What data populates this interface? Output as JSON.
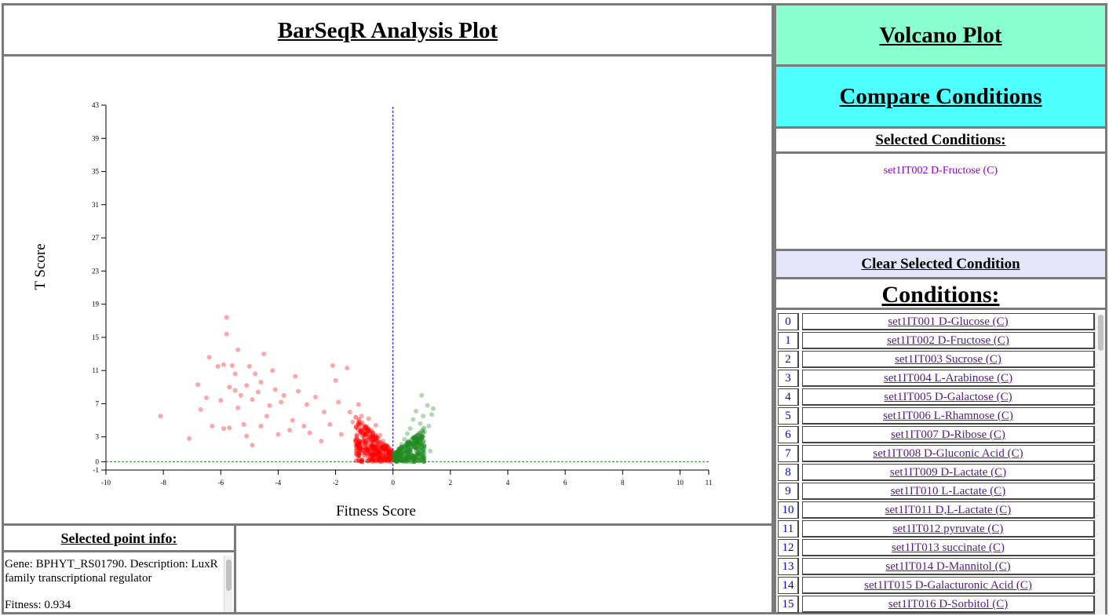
{
  "title": "BarSeqR Analysis Plot",
  "info": {
    "title": "Selected point info:",
    "gene_line": "Gene: BPHYT_RS01790. Description: LuxR family transcriptional regulator",
    "fitness_line": "Fitness: 0.934"
  },
  "nav": {
    "volcano": "Volcano Plot",
    "compare": "Compare Conditions"
  },
  "selected": {
    "title": "Selected Conditions:",
    "items": [
      "set1IT002 D-Fructose (C)"
    ],
    "clear": "Clear Selected Condition"
  },
  "conditions": {
    "title": "Conditions:",
    "items": [
      {
        "idx": "0",
        "name": "set1IT001 D-Glucose (C)"
      },
      {
        "idx": "1",
        "name": "set1IT002 D-Fructose (C)"
      },
      {
        "idx": "2",
        "name": "set1IT003 Sucrose (C)"
      },
      {
        "idx": "3",
        "name": "set1IT004 L-Arabinose (C)"
      },
      {
        "idx": "4",
        "name": "set1IT005 D-Galactose (C)"
      },
      {
        "idx": "5",
        "name": "set1IT006 L-Rhamnose (C)"
      },
      {
        "idx": "6",
        "name": "set1IT007 D-Ribose (C)"
      },
      {
        "idx": "7",
        "name": "set1IT008 D-Gluconic Acid (C)"
      },
      {
        "idx": "8",
        "name": "set1IT009 D-Lactate (C)"
      },
      {
        "idx": "9",
        "name": "set1IT010 L-Lactate (C)"
      },
      {
        "idx": "10",
        "name": "set1IT011 D,L-Lactate (C)"
      },
      {
        "idx": "11",
        "name": "set1IT012 pyruvate (C)"
      },
      {
        "idx": "12",
        "name": "set1IT013 succinate (C)"
      },
      {
        "idx": "13",
        "name": "set1IT014 D-Mannitol (C)"
      },
      {
        "idx": "14",
        "name": "set1IT015 D-Galacturonic Acid (C)"
      },
      {
        "idx": "15",
        "name": "set1IT016 D-Sorbitol (C)"
      }
    ]
  },
  "chart_data": {
    "type": "scatter",
    "xlabel": "Fitness Score",
    "ylabel": "T Score",
    "xlim": [
      -10,
      11
    ],
    "ylim": [
      -1,
      43
    ],
    "x_ticks": [
      -10,
      -8,
      -6,
      -4,
      -2,
      0,
      2,
      4,
      6,
      8,
      10,
      11
    ],
    "y_ticks": [
      -1,
      0,
      3,
      7,
      11,
      15,
      19,
      23,
      27,
      31,
      35,
      39,
      43
    ],
    "reference_lines": {
      "vertical_x": 0,
      "horizontal_y": 0
    },
    "colors": {
      "negative": "#ff0000",
      "positive": "#228b22",
      "vline": "#0000cc",
      "hline": "#228b22"
    },
    "series": [
      {
        "color": "#ff0000",
        "points": [
          [
            -8.1,
            5.5
          ],
          [
            -7.1,
            2.8
          ],
          [
            -6.8,
            9.3
          ],
          [
            -6.7,
            6.3
          ],
          [
            -6.5,
            7.7
          ],
          [
            -6.4,
            12.6
          ],
          [
            -6.3,
            4.3
          ],
          [
            -6.1,
            11.5
          ],
          [
            -6.0,
            7.4
          ],
          [
            -5.9,
            4.0
          ],
          [
            -5.9,
            11.7
          ],
          [
            -5.8,
            15.4
          ],
          [
            -5.8,
            17.4
          ],
          [
            -5.7,
            9.0
          ],
          [
            -5.7,
            4.1
          ],
          [
            -5.6,
            11.6
          ],
          [
            -5.5,
            8.6
          ],
          [
            -5.5,
            10.6
          ],
          [
            -5.4,
            13.5
          ],
          [
            -5.4,
            6.5
          ],
          [
            -5.3,
            8.0
          ],
          [
            -5.2,
            4.5
          ],
          [
            -5.1,
            9.2
          ],
          [
            -5.1,
            3.1
          ],
          [
            -5.0,
            11.5
          ],
          [
            -4.9,
            7.5
          ],
          [
            -4.9,
            2.0
          ],
          [
            -4.8,
            10.6
          ],
          [
            -4.7,
            8.4
          ],
          [
            -4.6,
            4.3
          ],
          [
            -4.6,
            9.6
          ],
          [
            -4.5,
            13.0
          ],
          [
            -4.4,
            5.5
          ],
          [
            -4.3,
            6.8
          ],
          [
            -4.2,
            11.0
          ],
          [
            -4.1,
            8.7
          ],
          [
            -4.0,
            3.3
          ],
          [
            -3.9,
            7.2
          ],
          [
            -3.8,
            8.0
          ],
          [
            -3.6,
            3.8
          ],
          [
            -3.5,
            5.0
          ],
          [
            -3.4,
            10.3
          ],
          [
            -3.3,
            8.5
          ],
          [
            -3.1,
            4.3
          ],
          [
            -3.0,
            6.9
          ],
          [
            -2.9,
            3.5
          ],
          [
            -2.7,
            7.8
          ],
          [
            -2.5,
            2.5
          ],
          [
            -2.4,
            6.0
          ],
          [
            -2.2,
            4.5
          ],
          [
            -2.1,
            11.6
          ],
          [
            -2.0,
            9.8
          ],
          [
            -1.9,
            7.2
          ],
          [
            -1.8,
            3.3
          ],
          [
            -1.6,
            11.3
          ],
          [
            -1.5,
            6.0
          ],
          [
            -1.4,
            4.8
          ],
          [
            -1.3,
            2.4
          ],
          [
            -1.2,
            6.9
          ],
          [
            -1.1,
            5.5
          ],
          [
            -1.0,
            4.3
          ],
          [
            -0.95,
            3.3
          ],
          [
            -0.9,
            2.3
          ],
          [
            -0.85,
            5.2
          ],
          [
            -0.8,
            1.5
          ],
          [
            -0.75,
            3.8
          ],
          [
            -0.7,
            2.8
          ],
          [
            -0.65,
            1.0
          ],
          [
            -0.6,
            4.4
          ],
          [
            -0.55,
            2.0
          ],
          [
            -0.5,
            0.6
          ],
          [
            -0.45,
            3.2
          ],
          [
            -0.4,
            1.6
          ],
          [
            -0.35,
            2.5
          ],
          [
            -0.3,
            0.9
          ],
          [
            -0.25,
            1.8
          ],
          [
            -0.2,
            0.4
          ],
          [
            -0.15,
            1.2
          ],
          [
            -0.1,
            0.2
          ],
          [
            -0.05,
            0.6
          ]
        ]
      },
      {
        "color": "#228b22",
        "points": [
          [
            0.05,
            0.3
          ],
          [
            0.1,
            1.0
          ],
          [
            0.15,
            0.5
          ],
          [
            0.2,
            1.6
          ],
          [
            0.25,
            0.8
          ],
          [
            0.3,
            2.1
          ],
          [
            0.35,
            1.2
          ],
          [
            0.4,
            2.7
          ],
          [
            0.45,
            1.5
          ],
          [
            0.5,
            3.4
          ],
          [
            0.55,
            2.0
          ],
          [
            0.6,
            4.0
          ],
          [
            0.65,
            1.8
          ],
          [
            0.7,
            5.1
          ],
          [
            0.75,
            2.5
          ],
          [
            0.8,
            6.1
          ],
          [
            0.85,
            3.2
          ],
          [
            0.9,
            2.4
          ],
          [
            0.95,
            4.6
          ],
          [
            1.0,
            8.0
          ],
          [
            1.05,
            5.5
          ],
          [
            1.1,
            3.6
          ],
          [
            1.2,
            6.8
          ],
          [
            1.25,
            4.3
          ],
          [
            1.3,
            1.3
          ],
          [
            1.35,
            5.7
          ],
          [
            1.4,
            6.4
          ],
          [
            0.6,
            0.9
          ],
          [
            0.8,
            1.4
          ],
          [
            1.0,
            2.9
          ]
        ]
      }
    ],
    "dense_regions": [
      {
        "color": "#ff0000",
        "x_range": [
          -1.3,
          0
        ],
        "y_max": 5.0
      },
      {
        "color": "#228b22",
        "x_range": [
          0,
          1.1
        ],
        "y_max": 3.8
      }
    ]
  }
}
